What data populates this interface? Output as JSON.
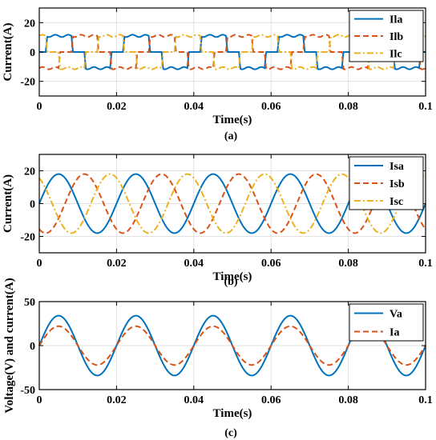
{
  "chart_data": [
    {
      "type": "line",
      "caption": "(a)",
      "xlabel": "Time(s)",
      "ylabel": "Current(A)",
      "xlim": [
        0,
        0.1
      ],
      "ylim": [
        -30,
        30
      ],
      "xticks": [
        0,
        0.02,
        0.04,
        0.06,
        0.08,
        0.1
      ],
      "xtick_labels": [
        "0",
        "0.02",
        "0.04",
        "0.06",
        "0.08",
        "0.1"
      ],
      "yticks": [
        -20,
        0,
        20
      ],
      "ytick_labels": [
        "-20",
        "0",
        "20"
      ],
      "grid": true,
      "legend_position": "top-right",
      "frequency_hz": 50,
      "waveform": "square-like, quasi-trapezoidal load current",
      "series": [
        {
          "name": "Ila",
          "color": "#0072BD",
          "style": "solid",
          "amplitude": 11,
          "phase_deg": 0
        },
        {
          "name": "Ilb",
          "color": "#D95319",
          "style": "dashed",
          "amplitude": 11,
          "phase_deg": -120
        },
        {
          "name": "Ilc",
          "color": "#EDB120",
          "style": "dashdot",
          "amplitude": 11,
          "phase_deg": 120
        }
      ]
    },
    {
      "type": "line",
      "caption": "(b)",
      "xlabel": "Time(s)",
      "ylabel": "Current(A)",
      "xlim": [
        0,
        0.1
      ],
      "ylim": [
        -30,
        30
      ],
      "xticks": [
        0,
        0.02,
        0.04,
        0.06,
        0.08,
        0.1
      ],
      "xtick_labels": [
        "0",
        "0.02",
        "0.04",
        "0.06",
        "0.08",
        "0.1"
      ],
      "yticks": [
        -20,
        0,
        20
      ],
      "ytick_labels": [
        "-20",
        "0",
        "20"
      ],
      "grid": true,
      "legend_position": "top-right",
      "frequency_hz": 50,
      "waveform": "sinusoidal source current",
      "series": [
        {
          "name": "Isa",
          "color": "#0072BD",
          "style": "solid",
          "amplitude": 18,
          "phase_deg": 0
        },
        {
          "name": "Isb",
          "color": "#D95319",
          "style": "dashed",
          "amplitude": 18,
          "phase_deg": -120
        },
        {
          "name": "Isc",
          "color": "#EDB120",
          "style": "dashdot",
          "amplitude": 18,
          "phase_deg": 120
        }
      ]
    },
    {
      "type": "line",
      "caption": "(c)",
      "xlabel": "Time(s)",
      "ylabel": "Voltage(V) and current(A)",
      "xlim": [
        0,
        0.1
      ],
      "ylim": [
        -50,
        50
      ],
      "xticks": [
        0,
        0.02,
        0.04,
        0.06,
        0.08,
        0.1
      ],
      "xtick_labels": [
        "0",
        "0.02",
        "0.04",
        "0.06",
        "0.08",
        "0.1"
      ],
      "yticks": [
        -50,
        0,
        50
      ],
      "ytick_labels": [
        "-50",
        "0",
        "50"
      ],
      "grid": true,
      "legend_position": "top-right",
      "frequency_hz": 50,
      "waveform": "sinusoidal, in phase",
      "series": [
        {
          "name": "Va",
          "color": "#0072BD",
          "style": "solid",
          "amplitude": 34,
          "phase_deg": 0
        },
        {
          "name": "Ia",
          "color": "#D95319",
          "style": "dashed",
          "amplitude": 22,
          "phase_deg": 0
        }
      ]
    }
  ]
}
